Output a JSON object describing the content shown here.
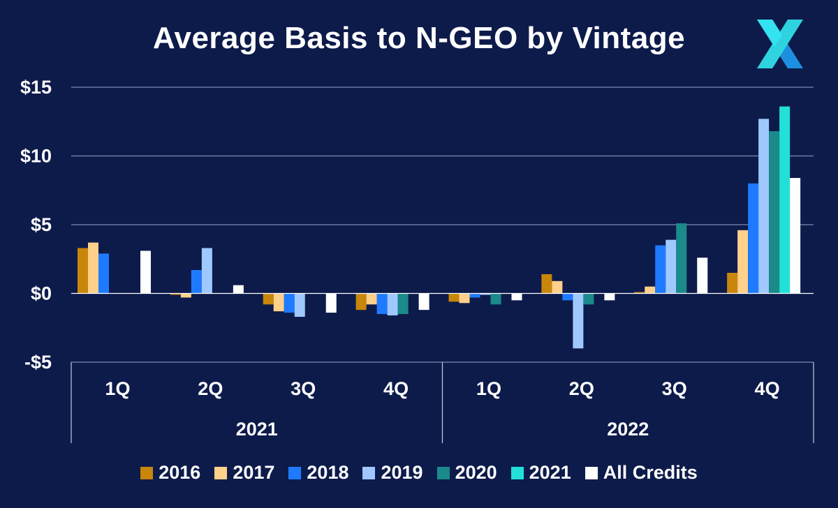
{
  "chart_data": {
    "type": "bar",
    "title": "Average Basis to N-GEO by Vintage",
    "y_tick_labels": [
      "$15",
      "$10",
      "$5",
      "$0",
      "-$5"
    ],
    "y_ticks": [
      15,
      10,
      5,
      0,
      -5
    ],
    "ylim": [
      -5,
      15
    ],
    "grid": true,
    "legend_position": "bottom",
    "quarters": [
      "1Q",
      "2Q",
      "3Q",
      "4Q",
      "1Q",
      "2Q",
      "3Q",
      "4Q"
    ],
    "years": [
      {
        "label": "2021",
        "quarters": 4
      },
      {
        "label": "2022",
        "quarters": 4
      }
    ],
    "series": [
      {
        "name": "2016",
        "color": "#c8860a",
        "values": [
          3.3,
          -0.1,
          -0.8,
          -1.2,
          -0.6,
          1.4,
          0.1,
          1.5
        ]
      },
      {
        "name": "2017",
        "color": "#ffd08a",
        "values": [
          3.7,
          -0.3,
          -1.3,
          -0.8,
          -0.7,
          0.9,
          0.5,
          4.6
        ]
      },
      {
        "name": "2018",
        "color": "#1e7bff",
        "values": [
          2.9,
          1.7,
          -1.4,
          -1.5,
          -0.3,
          -0.5,
          3.5,
          8.0
        ]
      },
      {
        "name": "2019",
        "color": "#9fc8ff",
        "values": [
          0,
          3.3,
          -1.7,
          -1.6,
          -0.1,
          -4.0,
          3.9,
          12.7
        ]
      },
      {
        "name": "2020",
        "color": "#1a8a8a",
        "values": [
          0,
          0,
          0,
          -1.5,
          -0.8,
          -0.8,
          5.1,
          11.8
        ]
      },
      {
        "name": "2021",
        "color": "#22e0d8",
        "values": [
          0,
          0,
          0,
          0,
          0,
          0,
          0,
          13.6
        ]
      },
      {
        "name": "All Credits",
        "color": "#ffffff",
        "values": [
          3.1,
          0.6,
          -1.4,
          -1.2,
          -0.5,
          -0.5,
          2.6,
          8.4
        ]
      }
    ]
  },
  "logo": {
    "colors": [
      "#2fd3e0",
      "#1d8fe0"
    ],
    "icon": "x-logo-icon"
  }
}
